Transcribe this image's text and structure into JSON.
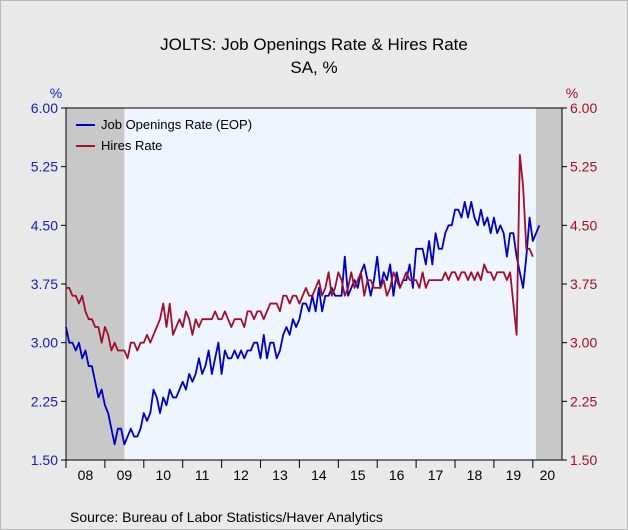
{
  "chart_data": {
    "type": "line",
    "title": "JOLTS: Job Openings Rate & Hires Rate",
    "subtitle": "SA, %",
    "left_unit": "%",
    "right_unit": "%",
    "source": "Source:  Bureau of Labor Statistics/Haver Analytics",
    "ylim": [
      1.5,
      6.0
    ],
    "y_ticks": [
      "6.00",
      "5.25",
      "4.50",
      "3.75",
      "3.00",
      "2.25",
      "1.50"
    ],
    "x_range": [
      2008.0,
      2020.75
    ],
    "x_ticks": [
      "08",
      "09",
      "10",
      "11",
      "12",
      "13",
      "14",
      "15",
      "16",
      "17",
      "18",
      "19",
      "20"
    ],
    "recessions": [
      [
        2008.0,
        2009.5
      ],
      [
        2020.08,
        2020.75
      ]
    ],
    "legend_position": "top-left",
    "colors": {
      "openings": "#0000c0",
      "hires": "#a0102a",
      "left_axis": "#1a1ab8",
      "right_axis": "#a0102a",
      "recession": "#c8c8c8",
      "plot_bg": "#eef5ff"
    },
    "series": [
      {
        "name": "Job Openings Rate (EOP)",
        "key": "openings",
        "start": 2008.0,
        "step": 0.0833333,
        "values": [
          3.2,
          3.0,
          3.0,
          2.9,
          3.0,
          2.8,
          2.9,
          2.7,
          2.7,
          2.5,
          2.3,
          2.4,
          2.2,
          2.1,
          1.9,
          1.7,
          1.9,
          1.9,
          1.7,
          1.8,
          1.9,
          1.8,
          1.8,
          1.9,
          2.1,
          2.0,
          2.1,
          2.4,
          2.3,
          2.1,
          2.3,
          2.2,
          2.4,
          2.3,
          2.3,
          2.4,
          2.5,
          2.4,
          2.6,
          2.5,
          2.6,
          2.8,
          2.6,
          2.7,
          2.9,
          2.6,
          2.8,
          3.0,
          2.6,
          2.9,
          2.8,
          2.8,
          2.9,
          2.8,
          2.9,
          2.8,
          2.9,
          2.9,
          3.0,
          3.0,
          2.8,
          3.1,
          2.8,
          3.0,
          3.0,
          2.8,
          2.9,
          3.1,
          3.2,
          3.1,
          3.3,
          3.2,
          3.3,
          3.5,
          3.5,
          3.4,
          3.6,
          3.4,
          3.7,
          3.4,
          3.6,
          3.6,
          3.7,
          3.6,
          3.6,
          3.6,
          4.1,
          3.6,
          3.7,
          3.8,
          3.7,
          3.9,
          4.0,
          3.8,
          3.6,
          3.8,
          4.1,
          3.7,
          3.9,
          3.8,
          4.0,
          3.6,
          3.9,
          3.7,
          3.8,
          3.8,
          4.0,
          3.7,
          4.2,
          4.2,
          4.2,
          4.0,
          4.3,
          4.0,
          4.4,
          4.2,
          4.2,
          4.4,
          4.5,
          4.5,
          4.7,
          4.7,
          4.6,
          4.8,
          4.6,
          4.8,
          4.6,
          4.5,
          4.7,
          4.5,
          4.6,
          4.4,
          4.6,
          4.4,
          4.5,
          4.4,
          4.1,
          4.4,
          4.4,
          4.1,
          3.9,
          3.7,
          4.1,
          4.6,
          4.3,
          4.4,
          4.5
        ]
      },
      {
        "name": "Hires Rate",
        "key": "hires",
        "start": 2008.0,
        "step": 0.0833333,
        "values": [
          3.7,
          3.7,
          3.6,
          3.6,
          3.5,
          3.6,
          3.4,
          3.3,
          3.3,
          3.2,
          3.2,
          3.0,
          3.2,
          3.1,
          2.9,
          3.0,
          2.9,
          2.9,
          2.9,
          2.8,
          3.0,
          3.0,
          2.9,
          3.0,
          3.0,
          3.1,
          3.0,
          3.1,
          3.2,
          3.3,
          3.5,
          3.2,
          3.5,
          3.1,
          3.2,
          3.3,
          3.2,
          3.4,
          3.3,
          3.1,
          3.3,
          3.2,
          3.3,
          3.3,
          3.3,
          3.3,
          3.4,
          3.3,
          3.3,
          3.4,
          3.3,
          3.2,
          3.3,
          3.3,
          3.3,
          3.2,
          3.4,
          3.4,
          3.3,
          3.4,
          3.4,
          3.3,
          3.4,
          3.5,
          3.5,
          3.5,
          3.4,
          3.6,
          3.6,
          3.5,
          3.6,
          3.6,
          3.5,
          3.6,
          3.7,
          3.6,
          3.6,
          3.7,
          3.8,
          3.6,
          3.7,
          3.9,
          3.6,
          3.7,
          3.9,
          3.8,
          3.6,
          3.7,
          3.9,
          3.7,
          3.8,
          3.9,
          3.6,
          3.8,
          3.8,
          3.7,
          3.7,
          3.7,
          3.8,
          3.6,
          3.7,
          3.9,
          3.8,
          3.7,
          3.8,
          3.9,
          3.8,
          3.8,
          3.8,
          3.7,
          3.9,
          3.7,
          3.8,
          3.8,
          3.8,
          3.8,
          3.8,
          3.9,
          3.8,
          3.9,
          3.9,
          3.8,
          3.9,
          3.9,
          3.8,
          3.9,
          3.8,
          3.9,
          3.8,
          4.0,
          3.9,
          3.9,
          3.8,
          3.9,
          3.9,
          3.9,
          3.8,
          3.9,
          3.5,
          3.1,
          5.4,
          5.0,
          4.2,
          4.2,
          4.1
        ]
      }
    ]
  }
}
